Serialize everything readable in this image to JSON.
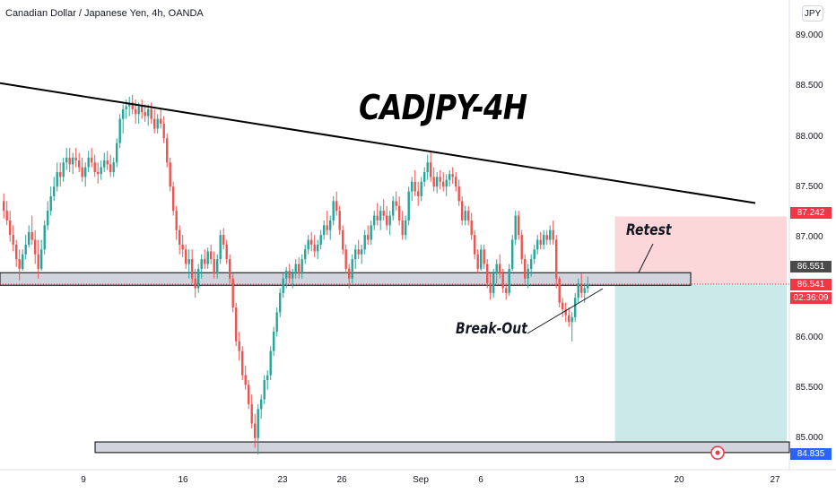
{
  "header": {
    "symbol_line": "Canadian Dollar / Japanese Yen, 4h, OANDA",
    "currency_button": "JPY"
  },
  "annotations": {
    "title": "CADJPY-4H",
    "retest": "Retest",
    "breakout": "Break-Out"
  },
  "colors": {
    "up": "#26a69a",
    "down": "#ef5350",
    "trendline": "#000000",
    "support_zone": "#d1d4dc",
    "stop_zone": "#fcd7d9",
    "target_zone": "#cbe9e9",
    "price_label": "#f23645"
  },
  "price_labels": {
    "stop": "87.242",
    "resistance": "86.551",
    "last": "86.541",
    "countdown": "02:36:09",
    "target": "84.835"
  },
  "chart_data": {
    "type": "candlestick",
    "title": "CADJPY-4H",
    "xlabel": "",
    "ylabel": "",
    "ylim": [
      84.66,
      89.22
    ],
    "y_ticks": [
      "89.000",
      "88.500",
      "88.000",
      "87.500",
      "87.000",
      "86.000",
      "85.500",
      "85.000"
    ],
    "x_ticks": [
      "9",
      "16",
      "23",
      "26",
      "Sep",
      "6",
      "13",
      "20",
      "27"
    ],
    "grid": false,
    "trendline": {
      "start_index": 0,
      "start_price": 88.62,
      "end_index": 206,
      "end_price": 87.38
    },
    "zones": {
      "breakout_level": [
        86.53,
        86.66
      ],
      "target_level": [
        84.8,
        84.91
      ],
      "stop_box": [
        86.54,
        87.242
      ],
      "target_box": [
        84.835,
        86.54
      ]
    },
    "last_price": 86.541,
    "series": [
      {
        "values": [
          [
            87.4,
            87.48,
            87.22,
            87.3
          ],
          [
            87.3,
            87.4,
            87.15,
            87.2
          ],
          [
            87.2,
            87.3,
            86.98,
            87.05
          ],
          [
            87.05,
            87.15,
            86.88,
            86.95
          ],
          [
            86.95,
            87.0,
            86.72,
            86.8
          ],
          [
            86.8,
            86.9,
            86.58,
            86.7
          ],
          [
            86.7,
            86.9,
            86.68,
            86.85
          ],
          [
            86.85,
            87.05,
            86.8,
            86.95
          ],
          [
            86.95,
            87.15,
            86.92,
            87.08
          ],
          [
            87.08,
            87.25,
            86.95,
            87.0
          ],
          [
            87.0,
            87.1,
            86.75,
            86.85
          ],
          [
            86.85,
            87.0,
            86.6,
            86.7
          ],
          [
            86.7,
            87.0,
            86.68,
            86.9
          ],
          [
            86.9,
            87.2,
            86.85,
            87.15
          ],
          [
            87.15,
            87.4,
            87.1,
            87.3
          ],
          [
            87.3,
            87.55,
            87.25,
            87.45
          ],
          [
            87.45,
            87.65,
            87.4,
            87.55
          ],
          [
            87.55,
            87.8,
            87.5,
            87.7
          ],
          [
            87.7,
            87.8,
            87.55,
            87.65
          ],
          [
            87.65,
            87.85,
            87.6,
            87.8
          ],
          [
            87.8,
            87.95,
            87.72,
            87.85
          ],
          [
            87.85,
            87.95,
            87.7,
            87.78
          ],
          [
            87.78,
            87.9,
            87.68,
            87.85
          ],
          [
            87.85,
            87.95,
            87.75,
            87.82
          ],
          [
            87.82,
            87.9,
            87.7,
            87.75
          ],
          [
            87.75,
            87.85,
            87.6,
            87.65
          ],
          [
            87.65,
            87.8,
            87.55,
            87.75
          ],
          [
            87.75,
            87.92,
            87.7,
            87.85
          ],
          [
            87.85,
            87.95,
            87.75,
            87.8
          ],
          [
            87.8,
            87.88,
            87.65,
            87.7
          ],
          [
            87.7,
            87.8,
            87.58,
            87.68
          ],
          [
            87.68,
            87.82,
            87.62,
            87.75
          ],
          [
            87.75,
            87.9,
            87.7,
            87.82
          ],
          [
            87.82,
            87.92,
            87.72,
            87.78
          ],
          [
            87.78,
            87.88,
            87.65,
            87.7
          ],
          [
            87.7,
            87.85,
            87.65,
            87.8
          ],
          [
            87.8,
            88.05,
            87.75,
            88.0
          ],
          [
            88.0,
            88.3,
            87.95,
            88.25
          ],
          [
            88.25,
            88.4,
            88.1,
            88.35
          ],
          [
            88.35,
            88.45,
            88.25,
            88.38
          ],
          [
            88.38,
            88.48,
            88.28,
            88.42
          ],
          [
            88.42,
            88.5,
            88.3,
            88.35
          ],
          [
            88.35,
            88.45,
            88.2,
            88.3
          ],
          [
            88.3,
            88.42,
            88.2,
            88.38
          ],
          [
            88.38,
            88.45,
            88.25,
            88.32
          ],
          [
            88.32,
            88.4,
            88.22,
            88.28
          ],
          [
            88.28,
            88.4,
            88.18,
            88.35
          ],
          [
            88.35,
            88.42,
            88.2,
            88.25
          ],
          [
            88.25,
            88.35,
            88.1,
            88.15
          ],
          [
            88.15,
            88.3,
            88.1,
            88.25
          ],
          [
            88.25,
            88.35,
            88.15,
            88.2
          ],
          [
            88.2,
            88.28,
            88.0,
            88.05
          ],
          [
            88.05,
            88.1,
            87.75,
            87.8
          ],
          [
            87.8,
            87.85,
            87.5,
            87.55
          ],
          [
            87.55,
            87.6,
            87.25,
            87.3
          ],
          [
            87.3,
            87.35,
            87.0,
            87.1
          ],
          [
            87.1,
            87.15,
            86.85,
            86.95
          ],
          [
            86.95,
            87.05,
            86.82,
            86.9
          ],
          [
            86.9,
            86.95,
            86.7,
            86.75
          ],
          [
            86.75,
            86.9,
            86.6,
            86.8
          ],
          [
            86.8,
            86.9,
            86.55,
            86.6
          ],
          [
            86.6,
            86.7,
            86.4,
            86.5
          ],
          [
            86.5,
            86.75,
            86.45,
            86.7
          ],
          [
            86.7,
            86.85,
            86.6,
            86.8
          ],
          [
            86.8,
            86.9,
            86.7,
            86.75
          ],
          [
            86.75,
            86.92,
            86.7,
            86.88
          ],
          [
            86.88,
            86.95,
            86.75,
            86.8
          ],
          [
            86.8,
            86.88,
            86.6,
            86.65
          ],
          [
            86.65,
            86.85,
            86.6,
            86.8
          ],
          [
            86.8,
            87.1,
            86.75,
            87.05
          ],
          [
            87.05,
            87.12,
            86.9,
            86.95
          ],
          [
            86.95,
            87.0,
            86.75,
            86.8
          ],
          [
            86.8,
            86.85,
            86.55,
            86.6
          ],
          [
            86.6,
            86.65,
            86.25,
            86.3
          ],
          [
            86.3,
            86.35,
            85.9,
            85.95
          ],
          [
            85.95,
            86.05,
            85.75,
            85.85
          ],
          [
            85.85,
            85.9,
            85.55,
            85.6
          ],
          [
            85.6,
            85.7,
            85.45,
            85.5
          ],
          [
            85.5,
            85.55,
            85.25,
            85.3
          ],
          [
            85.3,
            85.4,
            85.05,
            85.1
          ],
          [
            85.1,
            85.2,
            84.85,
            84.95
          ],
          [
            84.95,
            85.3,
            84.78,
            85.25
          ],
          [
            85.25,
            85.4,
            85.15,
            85.35
          ],
          [
            85.35,
            85.6,
            85.3,
            85.55
          ],
          [
            85.55,
            85.65,
            85.45,
            85.6
          ],
          [
            85.6,
            85.9,
            85.55,
            85.85
          ],
          [
            85.85,
            86.1,
            85.8,
            86.05
          ],
          [
            86.05,
            86.3,
            86.0,
            86.25
          ],
          [
            86.25,
            86.5,
            86.2,
            86.45
          ],
          [
            86.45,
            86.65,
            86.4,
            86.6
          ],
          [
            86.6,
            86.72,
            86.5,
            86.68
          ],
          [
            86.68,
            86.75,
            86.55,
            86.6
          ],
          [
            86.6,
            86.7,
            86.5,
            86.65
          ],
          [
            86.65,
            86.8,
            86.6,
            86.75
          ],
          [
            86.75,
            86.82,
            86.6,
            86.65
          ],
          [
            86.65,
            86.85,
            86.6,
            86.8
          ],
          [
            86.8,
            86.95,
            86.75,
            86.9
          ],
          [
            86.9,
            87.05,
            86.85,
            87.0
          ],
          [
            87.0,
            87.08,
            86.88,
            86.95
          ],
          [
            86.95,
            87.05,
            86.82,
            86.88
          ],
          [
            86.88,
            87.0,
            86.8,
            86.95
          ],
          [
            86.95,
            87.1,
            86.9,
            87.05
          ],
          [
            87.05,
            87.2,
            87.0,
            87.15
          ],
          [
            87.15,
            87.3,
            87.05,
            87.1
          ],
          [
            87.1,
            87.25,
            87.0,
            87.2
          ],
          [
            87.2,
            87.45,
            87.15,
            87.4
          ],
          [
            87.4,
            87.5,
            87.25,
            87.3
          ],
          [
            87.3,
            87.35,
            87.05,
            87.1
          ],
          [
            87.1,
            87.15,
            86.85,
            86.9
          ],
          [
            86.9,
            86.95,
            86.65,
            86.7
          ],
          [
            86.7,
            86.75,
            86.5,
            86.6
          ],
          [
            86.6,
            86.85,
            86.55,
            86.8
          ],
          [
            86.8,
            86.95,
            86.7,
            86.9
          ],
          [
            86.9,
            87.0,
            86.8,
            86.85
          ],
          [
            86.85,
            86.95,
            86.75,
            86.9
          ],
          [
            86.9,
            87.1,
            86.85,
            87.05
          ],
          [
            87.05,
            87.15,
            86.95,
            87.0
          ],
          [
            87.0,
            87.2,
            86.95,
            87.15
          ],
          [
            87.15,
            87.3,
            87.1,
            87.25
          ],
          [
            87.25,
            87.38,
            87.15,
            87.2
          ],
          [
            87.2,
            87.35,
            87.1,
            87.3
          ],
          [
            87.3,
            87.42,
            87.2,
            87.25
          ],
          [
            87.25,
            87.35,
            87.1,
            87.15
          ],
          [
            87.15,
            87.3,
            87.05,
            87.25
          ],
          [
            87.25,
            87.45,
            87.2,
            87.4
          ],
          [
            87.4,
            87.5,
            87.3,
            87.35
          ],
          [
            87.35,
            87.45,
            87.15,
            87.2
          ],
          [
            87.2,
            87.3,
            87.0,
            87.05
          ],
          [
            87.05,
            87.25,
            87.0,
            87.2
          ],
          [
            87.2,
            87.55,
            87.15,
            87.5
          ],
          [
            87.5,
            87.65,
            87.4,
            87.6
          ],
          [
            87.6,
            87.72,
            87.45,
            87.5
          ],
          [
            87.5,
            87.6,
            87.35,
            87.45
          ],
          [
            87.45,
            87.65,
            87.4,
            87.6
          ],
          [
            87.6,
            87.75,
            87.55,
            87.7
          ],
          [
            87.7,
            87.88,
            87.62,
            87.8
          ],
          [
            87.8,
            87.92,
            87.6,
            87.65
          ],
          [
            87.65,
            87.75,
            87.5,
            87.55
          ],
          [
            87.55,
            87.7,
            87.48,
            87.65
          ],
          [
            87.65,
            87.72,
            87.52,
            87.6
          ],
          [
            87.6,
            87.7,
            87.5,
            87.55
          ],
          [
            87.55,
            87.68,
            87.45,
            87.62
          ],
          [
            87.62,
            87.72,
            87.55,
            87.68
          ],
          [
            87.68,
            87.75,
            87.58,
            87.65
          ],
          [
            87.65,
            87.7,
            87.5,
            87.55
          ],
          [
            87.55,
            87.62,
            87.35,
            87.4
          ],
          [
            87.4,
            87.45,
            87.15,
            87.2
          ],
          [
            87.2,
            87.35,
            87.15,
            87.3
          ],
          [
            87.3,
            87.35,
            87.15,
            87.2
          ],
          [
            87.2,
            87.28,
            87.0,
            87.05
          ],
          [
            87.05,
            87.1,
            86.8,
            86.85
          ],
          [
            86.85,
            86.9,
            86.65,
            86.7
          ],
          [
            86.7,
            86.95,
            86.68,
            86.9
          ],
          [
            86.9,
            86.95,
            86.7,
            86.75
          ],
          [
            86.75,
            86.8,
            86.5,
            86.55
          ],
          [
            86.55,
            86.65,
            86.38,
            86.45
          ],
          [
            86.45,
            86.7,
            86.4,
            86.65
          ],
          [
            86.65,
            86.8,
            86.55,
            86.75
          ],
          [
            86.75,
            86.85,
            86.6,
            86.65
          ],
          [
            86.65,
            86.7,
            86.45,
            86.5
          ],
          [
            86.5,
            86.55,
            86.38,
            86.45
          ],
          [
            86.45,
            86.75,
            86.42,
            86.7
          ],
          [
            86.7,
            87.05,
            86.68,
            87.0
          ],
          [
            87.0,
            87.3,
            86.95,
            87.25
          ],
          [
            87.25,
            87.3,
            87.0,
            87.05
          ],
          [
            87.05,
            87.1,
            86.75,
            86.8
          ],
          [
            86.8,
            86.85,
            86.55,
            86.6
          ],
          [
            86.6,
            86.75,
            86.5,
            86.7
          ],
          [
            86.7,
            86.85,
            86.62,
            86.8
          ],
          [
            86.8,
            86.95,
            86.75,
            86.9
          ],
          [
            86.9,
            87.05,
            86.85,
            87.0
          ],
          [
            87.0,
            87.08,
            86.9,
            86.95
          ],
          [
            86.95,
            87.1,
            86.9,
            87.05
          ],
          [
            87.05,
            87.1,
            86.95,
            87.0
          ],
          [
            87.0,
            87.15,
            86.95,
            87.1
          ],
          [
            87.1,
            87.2,
            86.95,
            87.0
          ],
          [
            87.0,
            87.05,
            86.5,
            86.6
          ],
          [
            86.6,
            86.62,
            86.3,
            86.35
          ],
          [
            86.35,
            86.4,
            86.2,
            86.28
          ],
          [
            86.28,
            86.35,
            86.15,
            86.22
          ],
          [
            86.22,
            86.3,
            86.1,
            86.15
          ],
          [
            86.15,
            86.25,
            85.95,
            86.2
          ],
          [
            86.2,
            86.45,
            86.15,
            86.4
          ],
          [
            86.4,
            86.6,
            86.35,
            86.55
          ],
          [
            86.55,
            86.65,
            86.4,
            86.45
          ],
          [
            86.45,
            86.55,
            86.35,
            86.5
          ],
          [
            86.5,
            86.62,
            86.45,
            86.54
          ]
        ]
      }
    ]
  }
}
